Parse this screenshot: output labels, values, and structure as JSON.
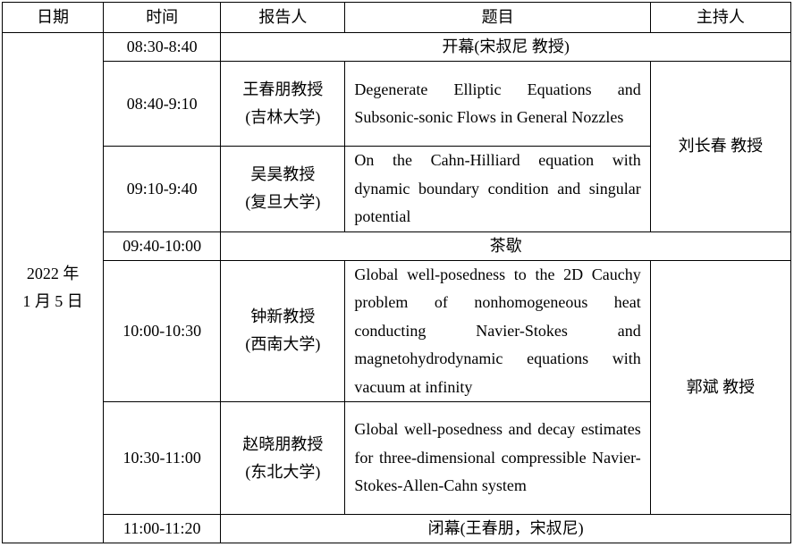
{
  "headers": [
    "日期",
    "时间",
    "报告人",
    "题目",
    "主持人"
  ],
  "date": [
    "2022 年",
    "1 月 5 日"
  ],
  "rows": [
    {
      "time": "08:30-8:40",
      "span_text": "开幕(宋叔尼  教授)"
    },
    {
      "time": "08:40-9:10",
      "speaker": "王春朋教授",
      "affiliation": "(吉林大学)",
      "title": "Degenerate Elliptic Equations and Subsonic-sonic Flows in General Nozzles"
    },
    {
      "time": "09:10-9:40",
      "speaker": "吴昊教授",
      "affiliation": "(复旦大学)",
      "title": "On the Cahn-Hilliard equation with dynamic boundary condition and singular potential"
    },
    {
      "time": "09:40-10:00",
      "span_text": "茶歇"
    },
    {
      "time": "10:00-10:30",
      "speaker": "钟新教授",
      "affiliation": "(西南大学)",
      "title": "Global well-posedness to the 2D Cauchy problem of nonhomogeneous heat conducting Navier-Stokes and magnetohydrodynamic equations with vacuum at infinity"
    },
    {
      "time": "10:30-11:00",
      "speaker": "赵晓朋教授",
      "affiliation": "(东北大学)",
      "title": "Global well-posedness and decay estimates for three-dimensional compressible Navier-Stokes-Allen-Cahn system"
    },
    {
      "time": "11:00-11:20",
      "span_text": "闭幕(王春朋，宋叔尼)"
    }
  ],
  "hosts": [
    "刘长春  教授",
    "郭斌  教授"
  ]
}
